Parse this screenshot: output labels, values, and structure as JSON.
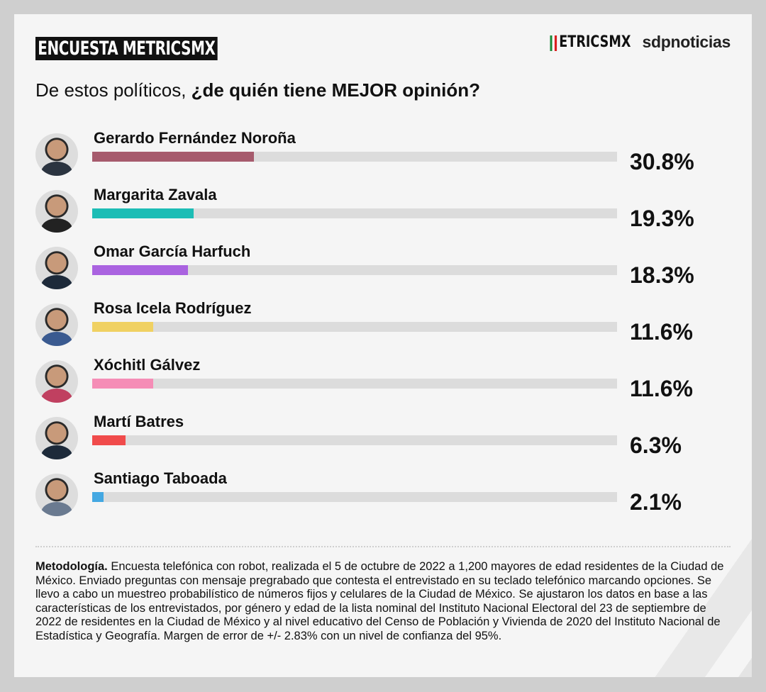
{
  "header": {
    "title": "ENCUESTA METRICSMX",
    "logo_metrics": "MetricsMX",
    "logo_sdp": "sdpnoticias",
    "question_prefix": "De estos políticos,",
    "question_bold": "¿de quién tiene MEJOR opinión?"
  },
  "chart_data": {
    "type": "bar",
    "orientation": "horizontal",
    "xlim": [
      0,
      100
    ],
    "grid": false,
    "categories": [
      "Gerardo Fernández Noroña",
      "Margarita Zavala",
      "Omar García Harfuch",
      "Rosa Icela Rodríguez",
      "Xóchitl Gálvez",
      "Martí Batres",
      "Santiago Taboada"
    ],
    "values": [
      30.8,
      19.3,
      18.3,
      11.6,
      11.6,
      6.3,
      2.1
    ],
    "labels": [
      "30.8%",
      "19.3%",
      "18.3%",
      "11.6%",
      "11.6%",
      "6.3%",
      "2.1%"
    ],
    "colors": [
      "#a65b6d",
      "#1dbdb5",
      "#aa63e0",
      "#f0d162",
      "#f58db6",
      "#f04b4b",
      "#44a8e2"
    ],
    "track_color": "#dcdcdc"
  },
  "methodology": {
    "label": "Metodología.",
    "text": "Encuesta telefónica con robot, realizada el 5 de octubre de 2022 a 1,200 mayores de edad residentes de la Ciudad de México. Enviado preguntas con mensaje pregrabado que contesta el entrevistado en su teclado telefónico marcando opciones. Se llevo a cabo un muestreo probabilístico de números fijos y celulares de la Ciudad de México. Se ajustaron los datos en base a las características de los entrevistados, por género y edad de la lista nominal del Instituto Nacional Electoral del 23 de septiembre de 2022 de residentes en la Ciudad de México y al nivel educativo del Censo de Población y Vivienda de 2020 del Instituto Nacional de Estadística y Geografía. Margen de error de +/- 2.83% con un nivel de confianza del 95%."
  }
}
